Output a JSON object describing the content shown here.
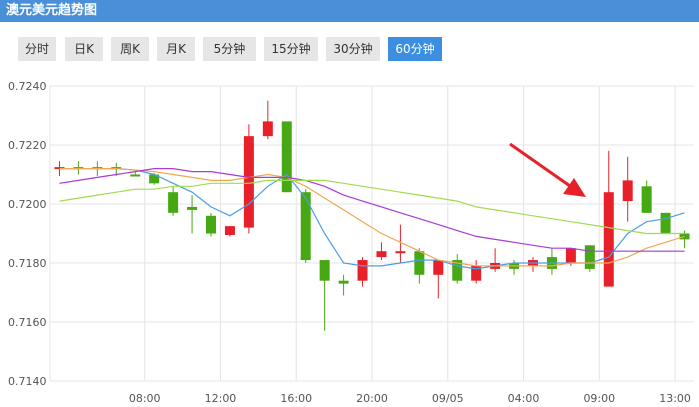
{
  "header": {
    "title": "澳元美元趋势图"
  },
  "tabs": [
    {
      "label": "分时",
      "active": false
    },
    {
      "label": "日K",
      "active": false
    },
    {
      "label": "周K",
      "active": false
    },
    {
      "label": "月K",
      "active": false
    },
    {
      "label": "5分钟",
      "active": false
    },
    {
      "label": "15分钟",
      "active": false
    },
    {
      "label": "30分钟",
      "active": false
    },
    {
      "label": "60分钟",
      "active": true
    }
  ],
  "colors": {
    "header_bg": "#4a90d9",
    "tab_active": "#3c8ee0",
    "tab_bg": "#e6e6e6",
    "up": "#e8202a",
    "down": "#46a812",
    "grid": "#e4e4e4",
    "ma_blue": "#4a9ee8",
    "ma_orange": "#f0a850",
    "ma_purple": "#a83ad8",
    "ma_green": "#a0dc50",
    "arrow": "#e8202a"
  },
  "chart_data": {
    "type": "candlestick",
    "title": "",
    "xlabel": "",
    "ylabel": "",
    "ylim": [
      0.714,
      0.724
    ],
    "y_ticks": [
      "0.7140",
      "0.7160",
      "0.7180",
      "0.7200",
      "0.7220",
      "0.7240"
    ],
    "x_tick_labels": [
      {
        "index": 4.5,
        "label": "08:00"
      },
      {
        "index": 8.5,
        "label": "12:00"
      },
      {
        "index": 12.5,
        "label": "16:00"
      },
      {
        "index": 16.5,
        "label": "20:00"
      },
      {
        "index": 20.5,
        "label": "09/05"
      },
      {
        "index": 24.5,
        "label": "04:00"
      },
      {
        "index": 28.5,
        "label": "09:00"
      },
      {
        "index": 32.5,
        "label": "13:00"
      }
    ],
    "grid": true,
    "candles": [
      {
        "open": 0.72125,
        "high": 0.72145,
        "low": 0.72095,
        "close": 0.72125
      },
      {
        "open": 0.72125,
        "high": 0.72145,
        "low": 0.721,
        "close": 0.7212
      },
      {
        "open": 0.72125,
        "high": 0.72145,
        "low": 0.72095,
        "close": 0.7212
      },
      {
        "open": 0.72125,
        "high": 0.7214,
        "low": 0.72095,
        "close": 0.7212
      },
      {
        "open": 0.721,
        "high": 0.7211,
        "low": 0.72095,
        "close": 0.72095
      },
      {
        "open": 0.721,
        "high": 0.72105,
        "low": 0.72065,
        "close": 0.7207
      },
      {
        "open": 0.7204,
        "high": 0.7206,
        "low": 0.7196,
        "close": 0.7197
      },
      {
        "open": 0.7199,
        "high": 0.7203,
        "low": 0.719,
        "close": 0.7198
      },
      {
        "open": 0.7196,
        "high": 0.7197,
        "low": 0.7189,
        "close": 0.719
      },
      {
        "open": 0.71895,
        "high": 0.71925,
        "low": 0.7189,
        "close": 0.71925
      },
      {
        "open": 0.7192,
        "high": 0.7227,
        "low": 0.719,
        "close": 0.7223
      },
      {
        "open": 0.7223,
        "high": 0.7235,
        "low": 0.7222,
        "close": 0.7228
      },
      {
        "open": 0.7228,
        "high": 0.7228,
        "low": 0.7204,
        "close": 0.7204
      },
      {
        "open": 0.7204,
        "high": 0.7205,
        "low": 0.718,
        "close": 0.7181
      },
      {
        "open": 0.7181,
        "high": 0.7181,
        "low": 0.7157,
        "close": 0.7174
      },
      {
        "open": 0.7174,
        "high": 0.7176,
        "low": 0.7169,
        "close": 0.7173
      },
      {
        "open": 0.7174,
        "high": 0.7182,
        "low": 0.7172,
        "close": 0.7181
      },
      {
        "open": 0.7182,
        "high": 0.7187,
        "low": 0.7181,
        "close": 0.7184
      },
      {
        "open": 0.7184,
        "high": 0.7193,
        "low": 0.718,
        "close": 0.7184
      },
      {
        "open": 0.7184,
        "high": 0.7185,
        "low": 0.7173,
        "close": 0.7176
      },
      {
        "open": 0.7176,
        "high": 0.7181,
        "low": 0.7168,
        "close": 0.7181
      },
      {
        "open": 0.7181,
        "high": 0.7183,
        "low": 0.7173,
        "close": 0.7174
      },
      {
        "open": 0.7174,
        "high": 0.7181,
        "low": 0.7173,
        "close": 0.7179
      },
      {
        "open": 0.7178,
        "high": 0.7185,
        "low": 0.7177,
        "close": 0.718
      },
      {
        "open": 0.718,
        "high": 0.7181,
        "low": 0.7176,
        "close": 0.7178
      },
      {
        "open": 0.7179,
        "high": 0.7182,
        "low": 0.7177,
        "close": 0.7181
      },
      {
        "open": 0.7182,
        "high": 0.7185,
        "low": 0.7176,
        "close": 0.7178
      },
      {
        "open": 0.718,
        "high": 0.7185,
        "low": 0.7179,
        "close": 0.7185
      },
      {
        "open": 0.7186,
        "high": 0.7186,
        "low": 0.7177,
        "close": 0.7178
      },
      {
        "open": 0.7172,
        "high": 0.7218,
        "low": 0.7172,
        "close": 0.7204
      },
      {
        "open": 0.7201,
        "high": 0.7216,
        "low": 0.7194,
        "close": 0.7208
      },
      {
        "open": 0.7206,
        "high": 0.7208,
        "low": 0.7197,
        "close": 0.7197
      },
      {
        "open": 0.7197,
        "high": 0.7197,
        "low": 0.719,
        "close": 0.719
      },
      {
        "open": 0.719,
        "high": 0.7191,
        "low": 0.7185,
        "close": 0.7188
      }
    ],
    "series": [
      {
        "color": "#4a9ee8",
        "values": [
          0.7212,
          0.7212,
          0.7212,
          0.7212,
          0.72115,
          0.721,
          0.7207,
          0.7204,
          0.7199,
          0.7196,
          0.72,
          0.7206,
          0.721,
          0.7202,
          0.719,
          0.718,
          0.7179,
          0.7179,
          0.718,
          0.7181,
          0.7181,
          0.7179,
          0.7178,
          0.7179,
          0.718,
          0.718,
          0.718,
          0.718,
          0.718,
          0.7182,
          0.719,
          0.7194,
          0.7195,
          0.7197
        ]
      },
      {
        "color": "#f0a850",
        "values": [
          0.7212,
          0.7212,
          0.7212,
          0.7212,
          0.72115,
          0.7211,
          0.721,
          0.7209,
          0.7208,
          0.7208,
          0.7209,
          0.721,
          0.7209,
          0.7206,
          0.7202,
          0.7198,
          0.7194,
          0.719,
          0.7187,
          0.7184,
          0.7181,
          0.718,
          0.7179,
          0.7179,
          0.7179,
          0.7179,
          0.7179,
          0.718,
          0.718,
          0.718,
          0.7182,
          0.7185,
          0.7187,
          0.7189
        ]
      },
      {
        "color": "#a83ad8",
        "values": [
          0.7207,
          0.7208,
          0.7209,
          0.721,
          0.7211,
          0.7212,
          0.7212,
          0.7211,
          0.7211,
          0.721,
          0.7209,
          0.7209,
          0.7209,
          0.7208,
          0.7206,
          0.7203,
          0.7201,
          0.7199,
          0.7197,
          0.7195,
          0.7193,
          0.7191,
          0.7189,
          0.7188,
          0.7187,
          0.7186,
          0.7185,
          0.7185,
          0.7184,
          0.7184,
          0.7184,
          0.7184,
          0.7184,
          0.7184
        ]
      },
      {
        "color": "#a0dc50",
        "values": [
          0.7201,
          0.7202,
          0.7203,
          0.7204,
          0.7205,
          0.7205,
          0.7206,
          0.7206,
          0.7207,
          0.7207,
          0.7207,
          0.7208,
          0.7208,
          0.7208,
          0.7208,
          0.7207,
          0.7206,
          0.7205,
          0.7204,
          0.7203,
          0.7202,
          0.7201,
          0.7199,
          0.7198,
          0.7197,
          0.7196,
          0.7195,
          0.7194,
          0.7193,
          0.7192,
          0.7191,
          0.719,
          0.719,
          0.719
        ]
      }
    ]
  }
}
